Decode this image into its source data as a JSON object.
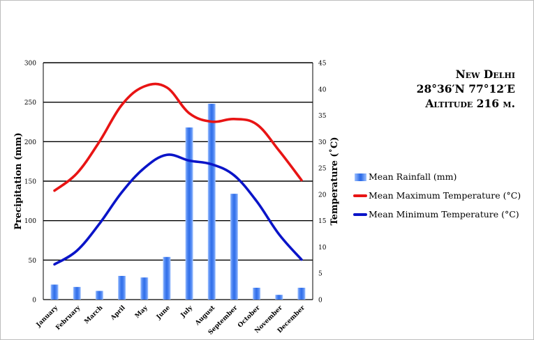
{
  "title": {
    "line1": "New Delhi",
    "line2": "28°36′N 77°12′E",
    "line3": "Altitude 216 m."
  },
  "legend": {
    "rainfall": "Mean Rainfall (mm)",
    "max_temp": "Mean Maximum Temperature (°C)",
    "min_temp": "Mean Minimum Temperature (°C)"
  },
  "colors": {
    "rainfall": "#2f6de8",
    "max_temp": "#e81414",
    "min_temp": "#0a14c8"
  },
  "chart_data": {
    "type": "bar+line",
    "categories": [
      "January",
      "February",
      "March",
      "April",
      "May",
      "June",
      "July",
      "August",
      "September",
      "October",
      "November",
      "December"
    ],
    "series": [
      {
        "name": "Mean Rainfall (mm)",
        "type": "bar",
        "axis": "left",
        "values": [
          19,
          16,
          11,
          30,
          28,
          54,
          218,
          248,
          134,
          15,
          6,
          15
        ]
      },
      {
        "name": "Mean Maximum Temperature (°C)",
        "type": "line",
        "axis": "right",
        "values": [
          20.7,
          24,
          30,
          37,
          40.5,
          40.3,
          35.4,
          33.8,
          34.3,
          33.3,
          28.3,
          22.7
        ]
      },
      {
        "name": "Mean Minimum Temperature (°C)",
        "type": "line",
        "axis": "right",
        "values": [
          6.7,
          9.3,
          14.4,
          20.4,
          25,
          27.5,
          26.4,
          25.7,
          23.6,
          18.7,
          12.4,
          7.6
        ]
      }
    ],
    "ylabel_left": "Precipitation (mm)",
    "ylabel_right": "Temperature (˚C)",
    "ylim_left": [
      0,
      300
    ],
    "ylim_right": [
      0,
      45
    ],
    "yticks_left": [
      0,
      50,
      100,
      150,
      200,
      250,
      300
    ],
    "yticks_right": [
      0,
      5,
      10,
      15,
      20,
      25,
      30,
      35,
      40,
      45
    ],
    "grid": true
  }
}
